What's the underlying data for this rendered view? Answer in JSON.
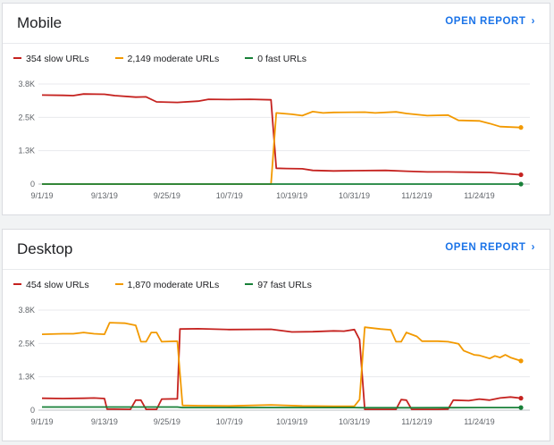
{
  "cards": [
    {
      "id": "mobile",
      "title": "Mobile",
      "open_report_label": "OPEN REPORT",
      "legend": [
        {
          "label": "354 slow URLs",
          "color": "#c5221f"
        },
        {
          "label": "2,149 moderate URLs",
          "color": "#f29900"
        },
        {
          "label": "0 fast URLs",
          "color": "#188038"
        }
      ]
    },
    {
      "id": "desktop",
      "title": "Desktop",
      "open_report_label": "OPEN REPORT",
      "legend": [
        {
          "label": "454 slow URLs",
          "color": "#c5221f"
        },
        {
          "label": "1,870 moderate URLs",
          "color": "#f29900"
        },
        {
          "label": "97 fast URLs",
          "color": "#188038"
        }
      ]
    }
  ],
  "chart_data": [
    {
      "type": "line",
      "y_tick_labels": [
        "0",
        "1.3K",
        "2.5K",
        "3.8K"
      ],
      "ylim": [
        0,
        3800
      ],
      "y_ticks": [
        0,
        1267,
        2533,
        3800
      ],
      "x_tick_labels": [
        "9/1/19",
        "9/13/19",
        "9/25/19",
        "10/7/19",
        "10/19/19",
        "10/31/19",
        "11/12/19",
        "11/24/19"
      ],
      "x_tick_positions": [
        0,
        12,
        24,
        36,
        48,
        60,
        72,
        84
      ],
      "xlim": [
        0,
        92
      ],
      "grid": true,
      "series": [
        {
          "name": "slow URLs",
          "color": "#c5221f",
          "points": [
            [
              0,
              3380
            ],
            [
              4,
              3370
            ],
            [
              6,
              3360
            ],
            [
              8,
              3420
            ],
            [
              12,
              3410
            ],
            [
              14,
              3360
            ],
            [
              18,
              3300
            ],
            [
              20,
              3310
            ],
            [
              22,
              3120
            ],
            [
              26,
              3100
            ],
            [
              30,
              3150
            ],
            [
              32,
              3220
            ],
            [
              36,
              3210
            ],
            [
              40,
              3220
            ],
            [
              44,
              3200
            ],
            [
              45,
              600
            ],
            [
              47,
              590
            ],
            [
              50,
              580
            ],
            [
              52,
              520
            ],
            [
              56,
              500
            ],
            [
              60,
              510
            ],
            [
              66,
              520
            ],
            [
              70,
              490
            ],
            [
              74,
              460
            ],
            [
              78,
              460
            ],
            [
              82,
              450
            ],
            [
              86,
              440
            ],
            [
              92,
              354
            ]
          ],
          "end_marker": true
        },
        {
          "name": "moderate URLs",
          "color": "#f29900",
          "points": [
            [
              0,
              0
            ],
            [
              44,
              0
            ],
            [
              45,
              2700
            ],
            [
              48,
              2650
            ],
            [
              50,
              2600
            ],
            [
              52,
              2750
            ],
            [
              54,
              2700
            ],
            [
              56,
              2720
            ],
            [
              62,
              2730
            ],
            [
              64,
              2700
            ],
            [
              68,
              2740
            ],
            [
              70,
              2680
            ],
            [
              74,
              2600
            ],
            [
              78,
              2620
            ],
            [
              80,
              2420
            ],
            [
              84,
              2400
            ],
            [
              86,
              2300
            ],
            [
              88,
              2180
            ],
            [
              92,
              2149
            ]
          ],
          "end_marker": true
        },
        {
          "name": "fast URLs",
          "color": "#188038",
          "points": [
            [
              0,
              0
            ],
            [
              92,
              0
            ]
          ],
          "end_marker": true
        }
      ]
    },
    {
      "type": "line",
      "y_tick_labels": [
        "0",
        "1.3K",
        "2.5K",
        "3.8K"
      ],
      "ylim": [
        0,
        3800
      ],
      "y_ticks": [
        0,
        1267,
        2533,
        3800
      ],
      "x_tick_labels": [
        "9/1/19",
        "9/13/19",
        "9/25/19",
        "10/7/19",
        "10/19/19",
        "10/31/19",
        "11/12/19",
        "11/24/19"
      ],
      "x_tick_positions": [
        0,
        12,
        24,
        36,
        48,
        60,
        72,
        84
      ],
      "xlim": [
        0,
        92
      ],
      "grid": true,
      "series": [
        {
          "name": "slow URLs",
          "color": "#c5221f",
          "points": [
            [
              0,
              450
            ],
            [
              4,
              440
            ],
            [
              8,
              450
            ],
            [
              10,
              460
            ],
            [
              12,
              440
            ],
            [
              12.5,
              40
            ],
            [
              17,
              30
            ],
            [
              18,
              380
            ],
            [
              19,
              380
            ],
            [
              20,
              30
            ],
            [
              22,
              30
            ],
            [
              23,
              420
            ],
            [
              26,
              430
            ],
            [
              26.5,
              3080
            ],
            [
              30,
              3090
            ],
            [
              36,
              3060
            ],
            [
              44,
              3070
            ],
            [
              48,
              2970
            ],
            [
              52,
              2980
            ],
            [
              56,
              3010
            ],
            [
              58,
              3000
            ],
            [
              60,
              3060
            ],
            [
              61,
              2680
            ],
            [
              62,
              30
            ],
            [
              66,
              30
            ],
            [
              68,
              30
            ],
            [
              69,
              400
            ],
            [
              70,
              380
            ],
            [
              71,
              30
            ],
            [
              76,
              30
            ],
            [
              78,
              40
            ],
            [
              79,
              380
            ],
            [
              82,
              360
            ],
            [
              84,
              420
            ],
            [
              86,
              380
            ],
            [
              88,
              460
            ],
            [
              90,
              500
            ],
            [
              92,
              454
            ]
          ],
          "end_marker": true
        },
        {
          "name": "moderate URLs",
          "color": "#f29900",
          "points": [
            [
              0,
              2880
            ],
            [
              4,
              2900
            ],
            [
              6,
              2900
            ],
            [
              8,
              2950
            ],
            [
              10,
              2900
            ],
            [
              12,
              2880
            ],
            [
              13,
              3320
            ],
            [
              16,
              3300
            ],
            [
              18,
              3220
            ],
            [
              19,
              2600
            ],
            [
              20,
              2600
            ],
            [
              21,
              2950
            ],
            [
              22,
              2950
            ],
            [
              23,
              2600
            ],
            [
              26,
              2620
            ],
            [
              27,
              180
            ],
            [
              30,
              170
            ],
            [
              36,
              160
            ],
            [
              44,
              200
            ],
            [
              50,
              160
            ],
            [
              56,
              150
            ],
            [
              60,
              150
            ],
            [
              61,
              400
            ],
            [
              62,
              3150
            ],
            [
              65,
              3080
            ],
            [
              67,
              3050
            ],
            [
              68,
              2600
            ],
            [
              69,
              2600
            ],
            [
              70,
              2950
            ],
            [
              72,
              2800
            ],
            [
              73,
              2620
            ],
            [
              76,
              2620
            ],
            [
              78,
              2600
            ],
            [
              80,
              2520
            ],
            [
              81,
              2260
            ],
            [
              83,
              2100
            ],
            [
              84,
              2080
            ],
            [
              86,
              1960
            ],
            [
              87,
              2060
            ],
            [
              88,
              2000
            ],
            [
              89,
              2100
            ],
            [
              90,
              2000
            ],
            [
              92,
              1870
            ]
          ],
          "end_marker": true
        },
        {
          "name": "fast URLs",
          "color": "#188038",
          "points": [
            [
              0,
              120
            ],
            [
              26,
              120
            ],
            [
              27,
              100
            ],
            [
              44,
              100
            ],
            [
              60,
              100
            ],
            [
              62,
              90
            ],
            [
              70,
              90
            ],
            [
              72,
              90
            ],
            [
              84,
              100
            ],
            [
              92,
              97
            ]
          ],
          "end_marker": true
        }
      ]
    }
  ]
}
